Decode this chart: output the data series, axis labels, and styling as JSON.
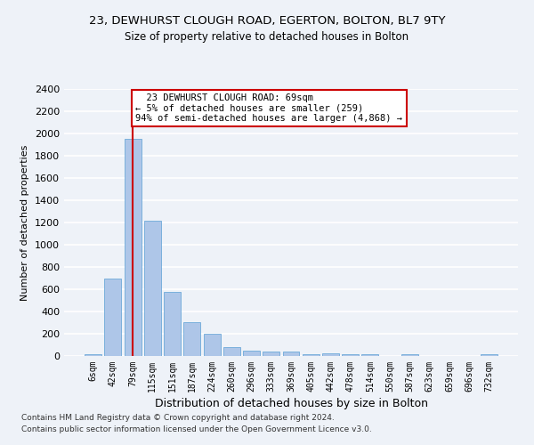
{
  "title": "23, DEWHURST CLOUGH ROAD, EGERTON, BOLTON, BL7 9TY",
  "subtitle": "Size of property relative to detached houses in Bolton",
  "xlabel": "Distribution of detached houses by size in Bolton",
  "ylabel": "Number of detached properties",
  "bar_color": "#aec6e8",
  "bar_edge_color": "#5a9fd4",
  "categories": [
    "6sqm",
    "42sqm",
    "79sqm",
    "115sqm",
    "151sqm",
    "187sqm",
    "224sqm",
    "260sqm",
    "296sqm",
    "333sqm",
    "369sqm",
    "405sqm",
    "442sqm",
    "478sqm",
    "514sqm",
    "550sqm",
    "587sqm",
    "623sqm",
    "659sqm",
    "696sqm",
    "732sqm"
  ],
  "values": [
    15,
    700,
    1950,
    1220,
    575,
    305,
    200,
    80,
    48,
    38,
    38,
    15,
    28,
    15,
    20,
    0,
    20,
    0,
    0,
    0,
    20
  ],
  "ylim": [
    0,
    2400
  ],
  "yticks": [
    0,
    200,
    400,
    600,
    800,
    1000,
    1200,
    1400,
    1600,
    1800,
    2000,
    2200,
    2400
  ],
  "annotation_text": "  23 DEWHURST CLOUGH ROAD: 69sqm\n← 5% of detached houses are smaller (259)\n94% of semi-detached houses are larger (4,868) →",
  "vline_x_idx": 2,
  "annotation_box_color": "#ffffff",
  "annotation_box_edge": "#cc0000",
  "vline_color": "#cc0000",
  "background_color": "#eef2f8",
  "grid_color": "#ffffff",
  "footer_line1": "Contains HM Land Registry data © Crown copyright and database right 2024.",
  "footer_line2": "Contains public sector information licensed under the Open Government Licence v3.0."
}
